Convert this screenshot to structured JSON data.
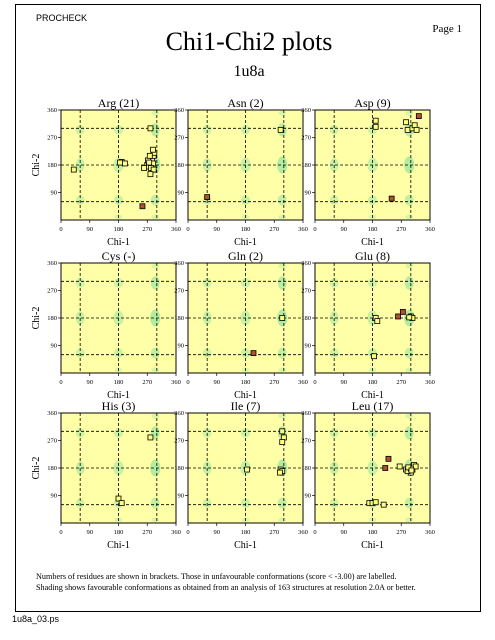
{
  "header": {
    "program": "PROCHECK",
    "page": "Page  1"
  },
  "title": "Chi1-Chi2 plots",
  "subtitle": "1u8a",
  "axis_labels": {
    "x": "Chi-1",
    "y": "Chi-2"
  },
  "tick_labels": [
    "0",
    "90",
    "180",
    "270",
    "360"
  ],
  "colors": {
    "background": "#ffffa8",
    "favourable": "#9be69b",
    "symbol_favourable": "#ffff80",
    "symbol_unfavourable": "#b05030",
    "grid": "#000000"
  },
  "footnote": {
    "line1": "Numbers of residues are shown in brackets. Those in unfavourable conformations (score < -3.00) are labelled.",
    "line2": "Shading shows favourable conformations as obtained from an analysis of 163 structures at resolution 2.0A or better."
  },
  "filename": "1u8a_03.ps",
  "chart_data": [
    {
      "type": "scatter",
      "title": "Arg (21)",
      "xlim": [
        0,
        360
      ],
      "ylim": [
        0,
        360
      ],
      "points": [
        [
          280,
          300
        ],
        [
          190,
          190
        ],
        [
          200,
          185
        ],
        [
          185,
          188
        ],
        [
          270,
          180
        ],
        [
          275,
          175
        ],
        [
          280,
          190
        ],
        [
          285,
          200
        ],
        [
          290,
          210
        ],
        [
          288,
          185
        ],
        [
          272,
          195
        ],
        [
          282,
          170
        ],
        [
          290,
          165
        ],
        [
          276,
          188
        ],
        [
          292,
          220
        ],
        [
          288,
          230
        ],
        [
          280,
          150
        ],
        [
          260,
          170
        ],
        [
          278,
          210
        ],
        [
          40,
          165
        ],
        [
          255,
          45
        ]
      ],
      "unfavourable": [
        [
          255,
          45
        ]
      ]
    },
    {
      "type": "scatter",
      "title": "Asn (2)",
      "xlim": [
        0,
        360
      ],
      "ylim": [
        0,
        360
      ],
      "points": [
        [
          290,
          295
        ],
        [
          60,
          75
        ]
      ],
      "unfavourable": [
        [
          60,
          75
        ]
      ]
    },
    {
      "type": "scatter",
      "title": "Asp (9)",
      "xlim": [
        0,
        360
      ],
      "ylim": [
        0,
        360
      ],
      "points": [
        [
          325,
          340
        ],
        [
          190,
          325
        ],
        [
          190,
          305
        ],
        [
          285,
          320
        ],
        [
          290,
          295
        ],
        [
          305,
          300
        ],
        [
          312,
          310
        ],
        [
          240,
          70
        ],
        [
          318,
          295
        ]
      ],
      "unfavourable": [
        [
          325,
          340
        ],
        [
          240,
          70
        ]
      ]
    },
    {
      "type": "scatter",
      "title": "Cys (-)",
      "xlim": [
        0,
        360
      ],
      "ylim": [
        0,
        360
      ],
      "points": [],
      "unfavourable": []
    },
    {
      "type": "scatter",
      "title": "Gln (2)",
      "xlim": [
        0,
        360
      ],
      "ylim": [
        0,
        360
      ],
      "points": [
        [
          295,
          180
        ],
        [
          205,
          65
        ]
      ],
      "unfavourable": [
        [
          205,
          65
        ]
      ]
    },
    {
      "type": "scatter",
      "title": "Glu (8)",
      "xlim": [
        0,
        360
      ],
      "ylim": [
        0,
        360
      ],
      "points": [
        [
          190,
          180
        ],
        [
          195,
          170
        ],
        [
          260,
          185
        ],
        [
          275,
          200
        ],
        [
          300,
          185
        ],
        [
          305,
          180
        ],
        [
          185,
          55
        ],
        [
          295,
          182
        ]
      ],
      "unfavourable": [
        [
          260,
          185
        ],
        [
          275,
          200
        ]
      ]
    },
    {
      "type": "scatter",
      "title": "His (3)",
      "xlim": [
        0,
        360
      ],
      "ylim": [
        0,
        360
      ],
      "points": [
        [
          280,
          280
        ],
        [
          180,
          80
        ],
        [
          190,
          65
        ]
      ],
      "unfavourable": []
    },
    {
      "type": "scatter",
      "title": "Ile (7)",
      "xlim": [
        0,
        360
      ],
      "ylim": [
        0,
        360
      ],
      "points": [
        [
          295,
          300
        ],
        [
          300,
          280
        ],
        [
          295,
          265
        ],
        [
          185,
          175
        ],
        [
          290,
          175
        ],
        [
          295,
          170
        ],
        [
          288,
          165
        ]
      ],
      "unfavourable": []
    },
    {
      "type": "scatter",
      "title": "Leu (17)",
      "xlim": [
        0,
        360
      ],
      "ylim": [
        0,
        360
      ],
      "points": [
        [
          230,
          210
        ],
        [
          220,
          180
        ],
        [
          265,
          185
        ],
        [
          285,
          175
        ],
        [
          295,
          180
        ],
        [
          300,
          165
        ],
        [
          305,
          175
        ],
        [
          310,
          190
        ],
        [
          315,
          185
        ],
        [
          290,
          170
        ],
        [
          300,
          178
        ],
        [
          170,
          65
        ],
        [
          180,
          65
        ],
        [
          215,
          60
        ],
        [
          190,
          68
        ],
        [
          292,
          182
        ],
        [
          302,
          172
        ]
      ],
      "unfavourable": [
        [
          230,
          210
        ],
        [
          220,
          180
        ]
      ]
    }
  ]
}
